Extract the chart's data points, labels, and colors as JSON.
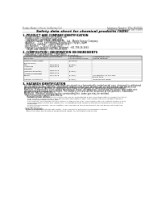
{
  "bg_color": "#ffffff",
  "header_left": "Product Name: Lithium Ion Battery Cell",
  "header_right_line1": "Substance Number: SDS-LIB-00010",
  "header_right_line2": "Established / Revision: Dec.7.2019",
  "title": "Safety data sheet for chemical products (SDS)",
  "section1_title": "1. PRODUCT AND COMPANY IDENTIFICATION",
  "section1_lines": [
    "  · Product name: Lithium Ion Battery Cell",
    "  · Product code: Cylindrical-type cell",
    "      SIV18650U, SIV18650L, SIV18650A",
    "  · Company name:     Sanyo Electric Co., Ltd., Mobile Energy Company",
    "  · Address:     2-21, Kannondani, Sumoto-City, Hyogo, Japan",
    "  · Telephone number:     +81-(799)-26-4111",
    "  · Fax number:     +81-(799)-26-4120",
    "  · Emergency telephone number (daytime): +81-799-26-2662",
    "      (Night and holiday): +81-799-26-4101"
  ],
  "section2_title": "2. COMPOSITION / INFORMATION ON INGREDIENTS",
  "section2_intro": "  · Substance or preparation: Preparation",
  "section2_sub": "  · Information about the chemical nature of product:",
  "table_col_headers1": [
    "Common chemical name /",
    "CAS number",
    "Concentration /",
    "Classification and"
  ],
  "table_col_headers2": [
    "Synonyms",
    "",
    "Concentration range",
    "hazard labeling"
  ],
  "table_rows": [
    [
      "Lithium nickel oxide",
      "-",
      "(30-60%)",
      "-"
    ],
    [
      "(LiNixCoyO2)",
      "",
      "",
      ""
    ],
    [
      "Iron",
      "7439-89-6",
      "(5-20%)",
      "-"
    ],
    [
      "Aluminum",
      "7429-90-5",
      "2.5%",
      "-"
    ],
    [
      "Graphite",
      "",
      "",
      ""
    ],
    [
      "(Natural graphite)",
      "7782-42-5",
      "(5-20%)",
      "-"
    ],
    [
      "(Artificial graphite)",
      "7782-44-0",
      "",
      ""
    ],
    [
      "Copper",
      "7440-50-8",
      "(5-15%)",
      "Sensitization of the skin"
    ],
    [
      "",
      "",
      "",
      "group No.2"
    ],
    [
      "Organic electrolyte",
      "-",
      "(2-20%)",
      "Inflammable liquid"
    ]
  ],
  "section3_title": "3. HAZARDS IDENTIFICATION",
  "section3_para": [
    "  For the battery cell, chemical materials are stored in a hermetically sealed metal case, designed to withstand",
    "  temperatures during batteries-production during normal use. As a result, during normal use, there is no",
    "  physical danger of ignition or explosion and there is no danger of hazardous materials leakage.",
    "  However, if exposed to a fire added mechanical shock, decomposed, vented electro whose may make use,",
    "  the gas release cannot be operated. The battery cell case will be breached of fire-particles. hazardous",
    "  materials may be released.",
    "  Moreover, if heated strongly by the surrounding fire, some gas may be emitted."
  ],
  "section3_bullet1": "  · Most important hazard and effects:",
  "section3_human_header": "      Human health effects:",
  "section3_human_lines": [
    "        Inhalation: The release of the electrolyte has an anaesthesia action and stimulates in respiratory tract.",
    "        Skin contact: The release of the electrolyte stimulates a skin. The electrolyte skin contact causes a",
    "        sore and stimulation on the skin.",
    "        Eye contact: The release of the electrolyte stimulates eyes. The electrolyte eye contact causes a sore",
    "        and stimulation on the eye. Especially, a substance that causes a strong inflammation of the eye is",
    "        contained.",
    "        Environmental effects: Since a battery cell remains in the environment, do not throw out it into the",
    "        environment."
  ],
  "section3_bullet2": "  · Specific hazards:",
  "section3_specific_lines": [
    "      If the electrolyte contacts with water, it will generate detrimental hydrogen fluoride.",
    "      Since the used electrolyte is inflammable liquid, do not bring close to fire."
  ]
}
